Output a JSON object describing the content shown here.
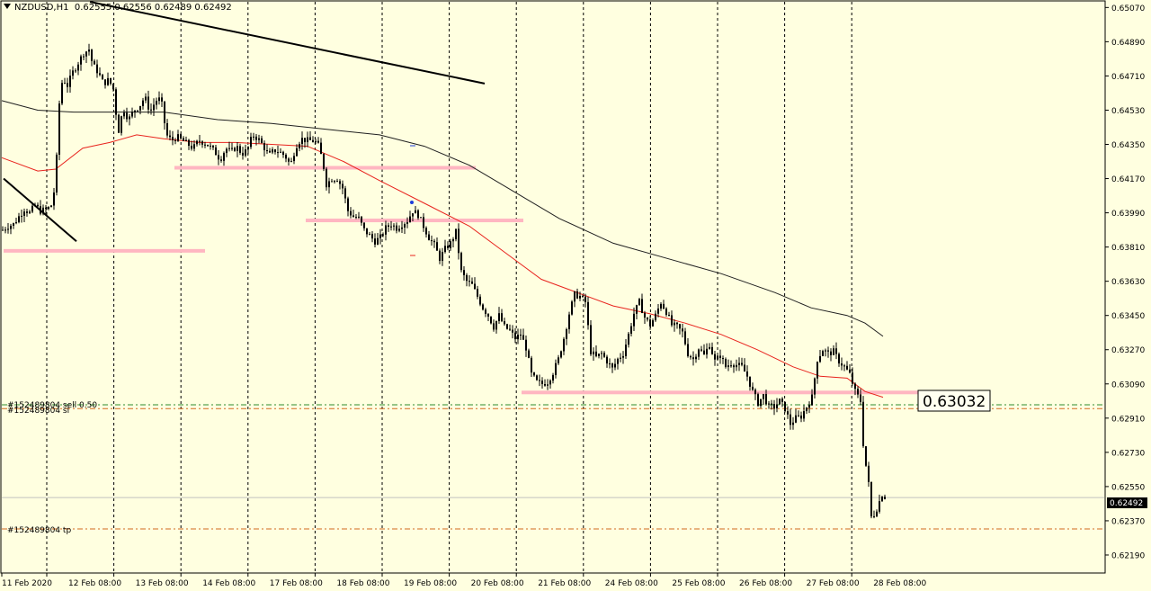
{
  "header": {
    "symbol": "NZDUSD,H1",
    "ohlc": "0.62555 0.62556 0.62489 0.62492"
  },
  "colors": {
    "background": "#FFFFE0",
    "bull": "#000000",
    "bear": "#000000",
    "ma_fast": "#E8241E",
    "ma_slow": "#202020",
    "level_zone": "#FFB6C1",
    "trend_line": "#000000",
    "sell_line": "#2E8B2E",
    "tp_line": "#D2691E"
  },
  "labels": {
    "order_sell": "#152489804 sell 0.50",
    "order_sl": "#152489804 sl",
    "order_tp": "#152489804 tp",
    "level_value": "0.63032",
    "last_price": "0.62492"
  },
  "chart_data": {
    "type": "candlestick",
    "title": "NZDUSD,H1",
    "ylim": [
      0.621,
      0.651
    ],
    "y_ticks": [
      "0.65070",
      "0.64890",
      "0.64710",
      "0.64530",
      "0.64350",
      "0.64170",
      "0.63990",
      "0.63810",
      "0.63630",
      "0.63450",
      "0.63270",
      "0.63090",
      "0.62910",
      "0.62730",
      "0.62550",
      "0.62370",
      "0.62190"
    ],
    "x_ticks": [
      "11 Feb 2020",
      "12 Feb 08:00",
      "13 Feb 08:00",
      "14 Feb 08:00",
      "17 Feb 08:00",
      "18 Feb 08:00",
      "19 Feb 08:00",
      "20 Feb 08:00",
      "21 Feb 08:00",
      "24 Feb 08:00",
      "25 Feb 08:00",
      "26 Feb 08:00",
      "27 Feb 08:00",
      "28 Feb 08:00"
    ],
    "close_path": [
      [
        0,
        0.639
      ],
      [
        6,
        0.6392
      ],
      [
        12,
        0.6393
      ],
      [
        18,
        0.6397
      ],
      [
        24,
        0.6401
      ],
      [
        30,
        0.6399
      ],
      [
        36,
        0.6403
      ],
      [
        42,
        0.64
      ],
      [
        50,
        0.6401
      ],
      [
        56,
        0.6404
      ],
      [
        60,
        0.6428
      ],
      [
        64,
        0.6466
      ],
      [
        68,
        0.6469
      ],
      [
        72,
        0.6466
      ],
      [
        78,
        0.6473
      ],
      [
        84,
        0.6478
      ],
      [
        90,
        0.6483
      ],
      [
        96,
        0.6485
      ],
      [
        100,
        0.6477
      ],
      [
        106,
        0.6473
      ],
      [
        112,
        0.6467
      ],
      [
        118,
        0.6469
      ],
      [
        124,
        0.6463
      ],
      [
        128,
        0.644
      ],
      [
        134,
        0.6454
      ],
      [
        140,
        0.6448
      ],
      [
        146,
        0.6453
      ],
      [
        152,
        0.6455
      ],
      [
        158,
        0.646
      ],
      [
        164,
        0.6452
      ],
      [
        170,
        0.6458
      ],
      [
        176,
        0.6459
      ],
      [
        182,
        0.644
      ],
      [
        188,
        0.6437
      ],
      [
        194,
        0.6439
      ],
      [
        200,
        0.6437
      ],
      [
        206,
        0.6435
      ],
      [
        212,
        0.6433
      ],
      [
        218,
        0.6437
      ],
      [
        224,
        0.6436
      ],
      [
        230,
        0.6434
      ],
      [
        236,
        0.6431
      ],
      [
        242,
        0.6427
      ],
      [
        248,
        0.6433
      ],
      [
        254,
        0.6431
      ],
      [
        260,
        0.6434
      ],
      [
        266,
        0.643
      ],
      [
        272,
        0.6432
      ],
      [
        278,
        0.644
      ],
      [
        284,
        0.6438
      ],
      [
        290,
        0.6434
      ],
      [
        296,
        0.6429
      ],
      [
        302,
        0.6432
      ],
      [
        308,
        0.6431
      ],
      [
        314,
        0.6429
      ],
      [
        320,
        0.6424
      ],
      [
        326,
        0.6434
      ],
      [
        332,
        0.6438
      ],
      [
        338,
        0.6437
      ],
      [
        344,
        0.6437
      ],
      [
        350,
        0.6436
      ],
      [
        356,
        0.6426
      ],
      [
        360,
        0.6414
      ],
      [
        366,
        0.6417
      ],
      [
        372,
        0.6417
      ],
      [
        378,
        0.6412
      ],
      [
        384,
        0.64
      ],
      [
        390,
        0.6397
      ],
      [
        396,
        0.6396
      ],
      [
        402,
        0.639
      ],
      [
        408,
        0.6387
      ],
      [
        414,
        0.6384
      ],
      [
        420,
        0.6386
      ],
      [
        426,
        0.6391
      ],
      [
        432,
        0.6393
      ],
      [
        438,
        0.6391
      ],
      [
        444,
        0.6393
      ],
      [
        450,
        0.6395
      ],
      [
        456,
        0.64
      ],
      [
        462,
        0.6398
      ],
      [
        468,
        0.6392
      ],
      [
        474,
        0.6386
      ],
      [
        480,
        0.6382
      ],
      [
        486,
        0.6375
      ],
      [
        492,
        0.638
      ],
      [
        498,
        0.6383
      ],
      [
        504,
        0.6389
      ],
      [
        510,
        0.6368
      ],
      [
        516,
        0.6363
      ],
      [
        522,
        0.6361
      ],
      [
        528,
        0.6355
      ],
      [
        534,
        0.6349
      ],
      [
        540,
        0.6345
      ],
      [
        546,
        0.6339
      ],
      [
        552,
        0.6345
      ],
      [
        558,
        0.6339
      ],
      [
        564,
        0.6337
      ],
      [
        570,
        0.6333
      ],
      [
        576,
        0.6335
      ],
      [
        582,
        0.6328
      ],
      [
        588,
        0.6314
      ],
      [
        594,
        0.631
      ],
      [
        600,
        0.6309
      ],
      [
        606,
        0.631
      ],
      [
        612,
        0.6315
      ],
      [
        618,
        0.6322
      ],
      [
        624,
        0.6333
      ],
      [
        630,
        0.6346
      ],
      [
        636,
        0.6356
      ],
      [
        642,
        0.6355
      ],
      [
        648,
        0.6352
      ],
      [
        654,
        0.6326
      ],
      [
        660,
        0.6323
      ],
      [
        666,
        0.6325
      ],
      [
        672,
        0.6321
      ],
      [
        678,
        0.6317
      ],
      [
        684,
        0.6322
      ],
      [
        690,
        0.6325
      ],
      [
        696,
        0.6335
      ],
      [
        702,
        0.6346
      ],
      [
        708,
        0.6352
      ],
      [
        714,
        0.6344
      ],
      [
        720,
        0.634
      ],
      [
        726,
        0.6345
      ],
      [
        732,
        0.6352
      ],
      [
        738,
        0.6347
      ],
      [
        744,
        0.634
      ],
      [
        750,
        0.6339
      ],
      [
        756,
        0.6336
      ],
      [
        762,
        0.6325
      ],
      [
        768,
        0.6322
      ],
      [
        774,
        0.6328
      ],
      [
        780,
        0.6324
      ],
      [
        786,
        0.633
      ],
      [
        792,
        0.6321
      ],
      [
        798,
        0.6324
      ],
      [
        804,
        0.6318
      ],
      [
        810,
        0.632
      ],
      [
        816,
        0.6319
      ],
      [
        822,
        0.6318
      ],
      [
        828,
        0.6313
      ],
      [
        834,
        0.6305
      ],
      [
        840,
        0.6299
      ],
      [
        846,
        0.6303
      ],
      [
        852,
        0.6297
      ],
      [
        858,
        0.6297
      ],
      [
        864,
        0.63
      ],
      [
        870,
        0.6296
      ],
      [
        876,
        0.6288
      ],
      [
        882,
        0.6291
      ],
      [
        888,
        0.6292
      ],
      [
        894,
        0.6297
      ],
      [
        900,
        0.6302
      ],
      [
        906,
        0.6322
      ],
      [
        912,
        0.6327
      ],
      [
        918,
        0.6325
      ],
      [
        924,
        0.6326
      ],
      [
        930,
        0.6321
      ],
      [
        936,
        0.6318
      ],
      [
        942,
        0.6314
      ],
      [
        948,
        0.6305
      ],
      [
        954,
        0.63
      ],
      [
        958,
        0.627
      ],
      [
        962,
        0.6262
      ],
      [
        966,
        0.6239
      ],
      [
        970,
        0.6241
      ],
      [
        974,
        0.6246
      ],
      [
        978,
        0.6251
      ],
      [
        982,
        0.6249
      ]
    ],
    "ma_fast": [
      [
        0,
        0.6428
      ],
      [
        40,
        0.6421
      ],
      [
        60,
        0.6422
      ],
      [
        90,
        0.6433
      ],
      [
        120,
        0.6436
      ],
      [
        150,
        0.644
      ],
      [
        180,
        0.6438
      ],
      [
        220,
        0.6436
      ],
      [
        260,
        0.6436
      ],
      [
        300,
        0.6435
      ],
      [
        340,
        0.6434
      ],
      [
        380,
        0.6426
      ],
      [
        420,
        0.6416
      ],
      [
        470,
        0.6404
      ],
      [
        520,
        0.6392
      ],
      [
        560,
        0.6378
      ],
      [
        600,
        0.6364
      ],
      [
        640,
        0.6357
      ],
      [
        680,
        0.635
      ],
      [
        720,
        0.6346
      ],
      [
        760,
        0.6341
      ],
      [
        800,
        0.6335
      ],
      [
        840,
        0.6327
      ],
      [
        880,
        0.6318
      ],
      [
        910,
        0.6313
      ],
      [
        940,
        0.6312
      ],
      [
        960,
        0.6305
      ],
      [
        980,
        0.6302
      ]
    ],
    "ma_slow": [
      [
        0,
        0.6458
      ],
      [
        40,
        0.6453
      ],
      [
        80,
        0.6452
      ],
      [
        120,
        0.6452
      ],
      [
        180,
        0.6452
      ],
      [
        240,
        0.6448
      ],
      [
        300,
        0.6446
      ],
      [
        360,
        0.6443
      ],
      [
        420,
        0.644
      ],
      [
        470,
        0.6434
      ],
      [
        520,
        0.6424
      ],
      [
        570,
        0.641
      ],
      [
        620,
        0.6396
      ],
      [
        680,
        0.6383
      ],
      [
        740,
        0.6375
      ],
      [
        800,
        0.6367
      ],
      [
        860,
        0.6357
      ],
      [
        900,
        0.6349
      ],
      [
        940,
        0.6345
      ],
      [
        960,
        0.6341
      ],
      [
        980,
        0.6334
      ]
    ],
    "zones": [
      [
        192,
        527,
        0.64227
      ],
      [
        338,
        580,
        0.6395
      ],
      [
        2,
        226,
        0.6379
      ],
      [
        578,
        1020,
        0.63045
      ]
    ],
    "trend_lines": [
      [
        [
          98,
          0.651
        ],
        [
          537,
          0.6467
        ]
      ],
      [
        [
          2,
          0.6417
        ],
        [
          83,
          0.6384
        ]
      ]
    ],
    "hlines": [
      {
        "y": 0.6298,
        "kind": "sell"
      },
      {
        "y": 0.6296,
        "kind": "sl"
      },
      {
        "y": 0.62327,
        "kind": "tp"
      },
      {
        "y": 0.62492,
        "kind": "last"
      }
    ]
  }
}
